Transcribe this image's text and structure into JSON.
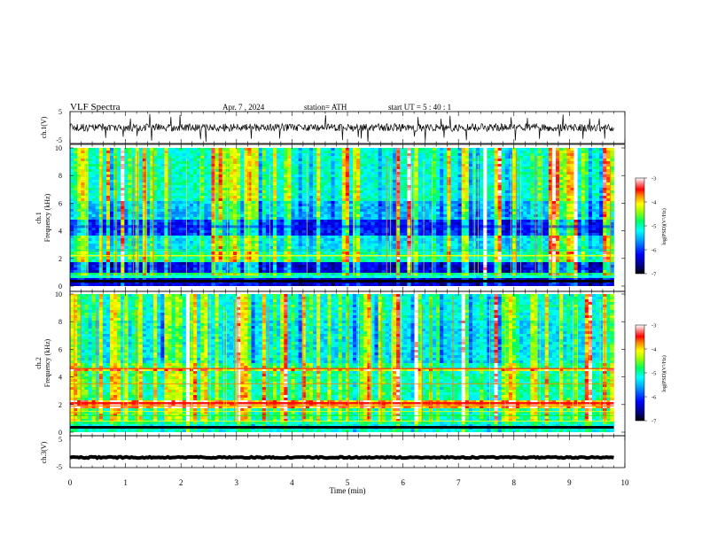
{
  "header": {
    "title": "VLF  Spectra",
    "date": "Apr. 7  , 2024",
    "station": "station= ATH",
    "start": "start  UT  =    5  : 40 : 1"
  },
  "chart_data": [
    {
      "type": "line",
      "name": "ch1-waveform",
      "ylabel": "ch.1(V)",
      "ylim": [
        -5,
        5
      ],
      "yticks": [
        "5",
        "-5"
      ],
      "xlim": [
        0,
        9.8
      ],
      "baseline": 0,
      "noise_amplitude": 1.2
    },
    {
      "type": "heatmap",
      "name": "ch1-spectrogram",
      "ylabel": "ch.1\nFrequency  (kHz)",
      "ylim": [
        0,
        10
      ],
      "xlim": [
        0,
        9.8
      ],
      "yticks": [
        "0",
        "2",
        "4",
        "6",
        "8",
        "10"
      ],
      "colorbar": {
        "label": "log(PSD)(V²/Hz)",
        "range": [
          -7,
          -3
        ],
        "ticks": [
          "-3",
          "-4",
          "-5",
          "-6",
          "-7"
        ]
      }
    },
    {
      "type": "heatmap",
      "name": "ch2-spectrogram",
      "ylabel": "ch.2\nFrequency  (kHz)",
      "ylim": [
        0,
        10
      ],
      "xlim": [
        0,
        9.8
      ],
      "yticks": [
        "0",
        "2",
        "4",
        "6",
        "8",
        "10"
      ],
      "colorbar": {
        "label": "log(PSD)(V²/Hz)",
        "range": [
          -7,
          -3
        ],
        "ticks": [
          "-3",
          "-4",
          "-5",
          "-6",
          "-7"
        ]
      }
    },
    {
      "type": "line",
      "name": "ch3-waveform",
      "ylabel": "ch.3(V)",
      "ylim": [
        -5,
        5
      ],
      "yticks": [
        "5",
        "-5"
      ],
      "xlim": [
        0,
        9.8
      ],
      "baseline": -1.8,
      "noise_amplitude": 0.2
    }
  ],
  "x_axis": {
    "label": "Time  (min)",
    "range": [
      0,
      10
    ],
    "ticks": [
      "0",
      "1",
      "2",
      "3",
      "4",
      "5",
      "6",
      "7",
      "8",
      "9",
      "10"
    ]
  },
  "colors": {
    "colormap": [
      "#000000",
      "#0000ff",
      "#00ffff",
      "#00ff00",
      "#ffff00",
      "#ff0000",
      "#ffffff"
    ]
  }
}
